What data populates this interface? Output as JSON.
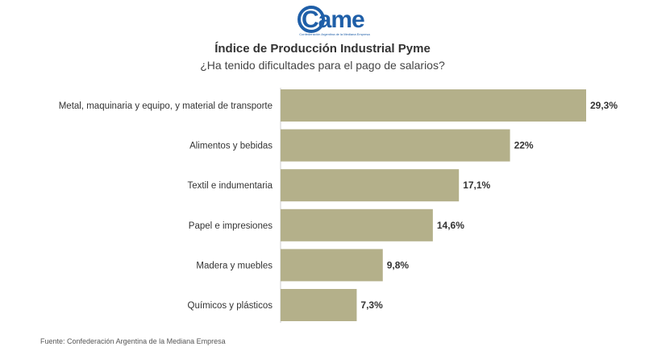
{
  "logo": {
    "text": "Came",
    "tagline": "Confederación Argentina de la Mediana Empresa",
    "color": "#1f5fa8"
  },
  "chart_data": {
    "type": "bar",
    "orientation": "horizontal",
    "title": "Índice de Producción Industrial Pyme",
    "subtitle": "¿Ha tenido dificultades para el pago de salarios?",
    "categories": [
      "Metal, maquinaria y equipo, y material de transporte",
      "Alimentos y bebidas",
      "Textil e indumentaria",
      "Papel e impresiones",
      "Madera y muebles",
      "Químicos y plásticos"
    ],
    "values": [
      29.3,
      22,
      17.1,
      14.6,
      9.8,
      7.3
    ],
    "value_labels": [
      "29,3%",
      "22%",
      "17,1%",
      "14,6%",
      "9,8%",
      "7,3%"
    ],
    "unit": "%",
    "xlim": [
      0,
      30
    ],
    "bar_color": "#b4b08a",
    "grid": false,
    "legend": "none"
  },
  "footer": {
    "source": "Fuente: Confederación Argentina de la Mediana Empresa"
  }
}
